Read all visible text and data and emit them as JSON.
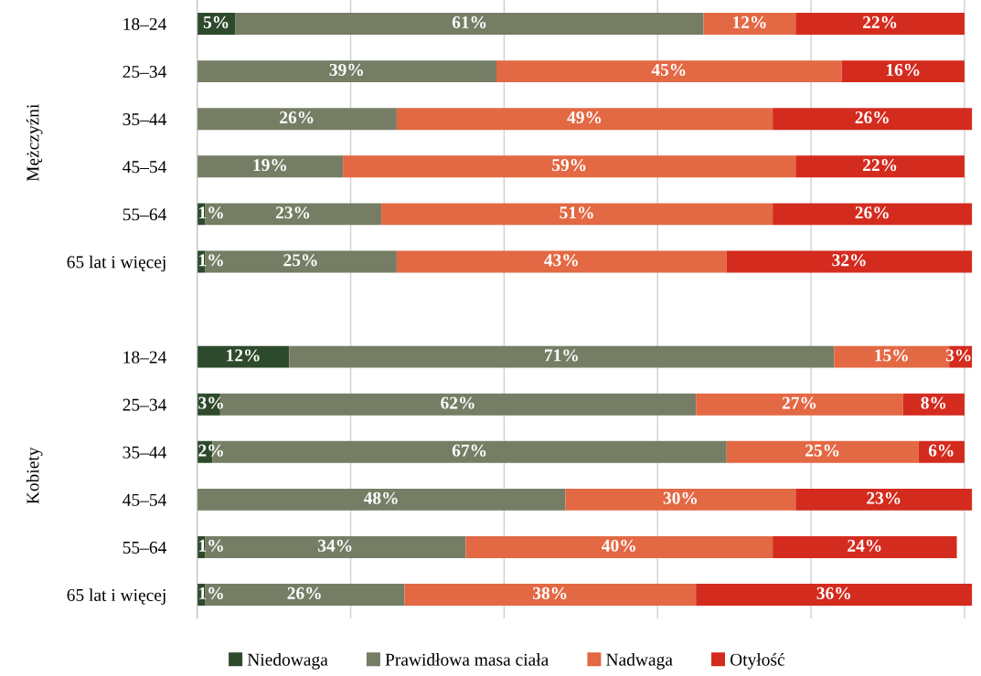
{
  "chart_data": {
    "type": "bar",
    "orientation": "horizontal",
    "stacked": true,
    "grid": "x",
    "legend": "bottom",
    "tick_labels": "y",
    "categories": [
      "18–24",
      "25–34",
      "35–44",
      "45–54",
      "55–64",
      "65 lat i więcej",
      null,
      "18–24",
      "25–34",
      "35–44",
      "45–54",
      "55–64",
      "65 lat i więcej"
    ],
    "series": [
      {
        "name": "Niedowaga",
        "color": "#2e4a2c",
        "values": [
          5,
          null,
          null,
          null,
          1,
          1,
          null,
          12,
          3,
          2,
          null,
          1,
          1
        ],
        "value_labels": [
          "5%",
          null,
          null,
          null,
          "1%",
          "1%",
          null,
          "12%",
          "3%",
          "2%",
          null,
          "1%",
          "1%"
        ]
      },
      {
        "name": "Prawidłowa masa ciała",
        "color": "#757e65",
        "values": [
          61,
          39,
          26,
          19,
          23,
          25,
          null,
          71,
          62,
          67,
          48,
          34,
          26
        ],
        "value_labels": [
          "61%",
          "39%",
          "26%",
          "19%",
          "23%",
          "25%",
          null,
          "71%",
          "62%",
          "67%",
          "48%",
          "34%",
          "26%"
        ]
      },
      {
        "name": "Nadwaga",
        "color": "#e36844",
        "values": [
          12,
          45,
          49,
          59,
          51,
          43,
          null,
          15,
          27,
          25,
          30,
          40,
          38
        ],
        "value_labels": [
          "12%",
          "45%",
          "49%",
          "59%",
          "51%",
          "43%",
          null,
          "15%",
          "27%",
          "25%",
          "30%",
          "40%",
          "38%"
        ]
      },
      {
        "name": "Otyłość",
        "color": "#d42b1f",
        "values": [
          22,
          16,
          26,
          22,
          26,
          32,
          null,
          3,
          8,
          6,
          23,
          24,
          36
        ],
        "value_labels": [
          "22%",
          "16%",
          "26%",
          "22%",
          "26%",
          "32%",
          null,
          "3%",
          "8%",
          "6%",
          "23%",
          "24%",
          "36%"
        ]
      }
    ],
    "annotations": [
      "Mężczyźni",
      "Kobiety"
    ]
  }
}
